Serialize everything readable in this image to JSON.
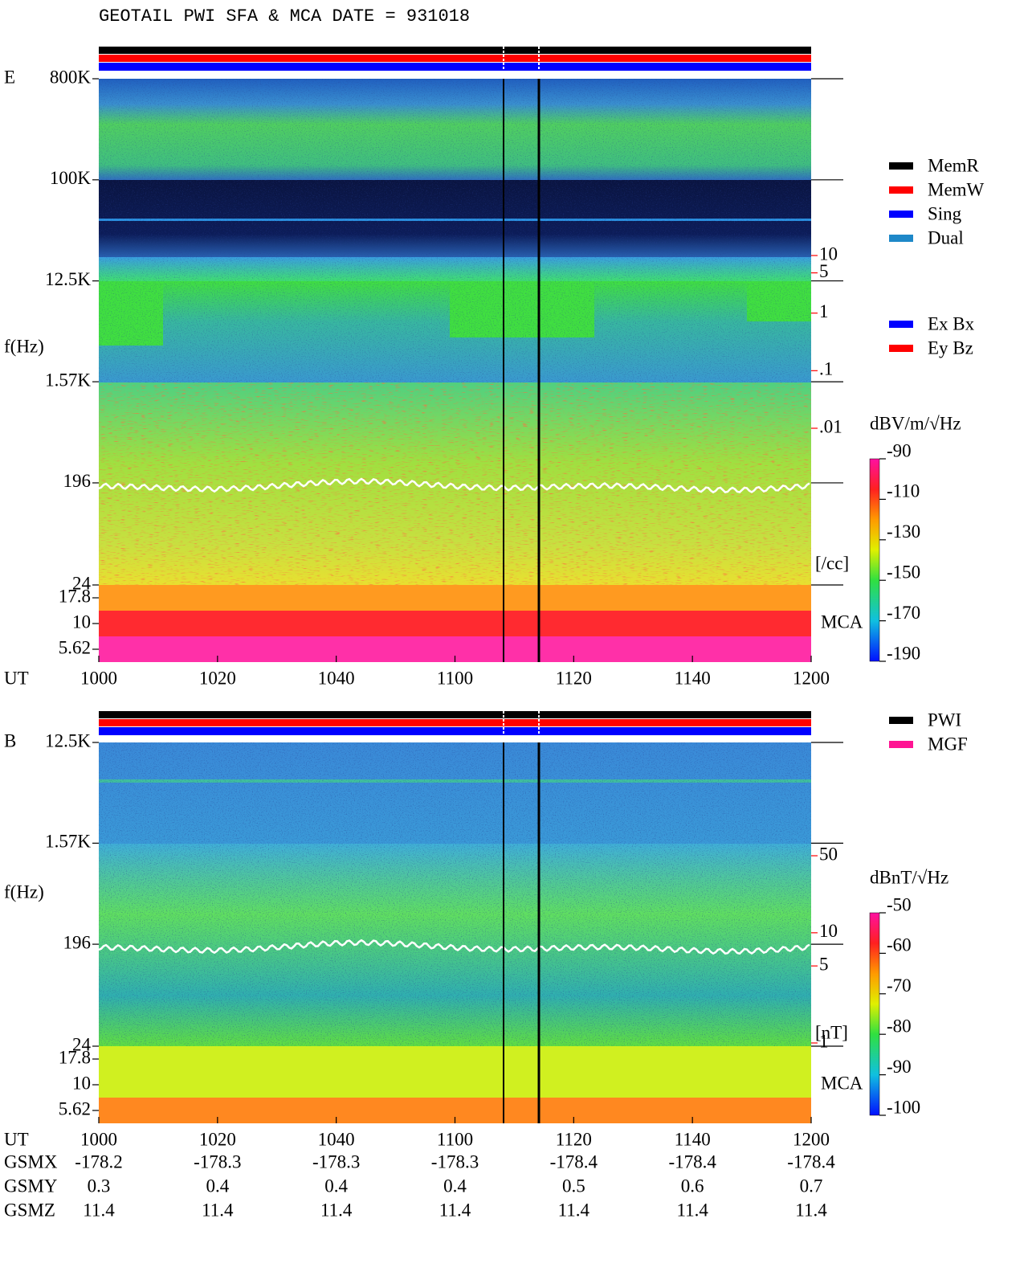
{
  "title": "GEOTAIL  PWI SFA & MCA   DATE = 931018",
  "chart_data": [
    {
      "type": "spectrogram",
      "panel_label": "E",
      "ylabel": "f(Hz)",
      "xlabel": "UT",
      "categories": [
        "1000",
        "1020",
        "1040",
        "1100",
        "1120",
        "1140",
        "1200"
      ],
      "log_y": true,
      "ylim": [
        24,
        800000
      ],
      "yticks": [
        {
          "value": 800000,
          "label": "800K"
        },
        {
          "value": 100000,
          "label": "100K"
        },
        {
          "value": 12500,
          "label": "12.5K"
        },
        {
          "value": 1570,
          "label": "1.57K"
        },
        196,
        24
      ],
      "mca_ticks": [
        17.8,
        10,
        5.62
      ],
      "mca_label": "MCA",
      "y2lim": [
        0.01,
        10
      ],
      "y2ticks": [
        10,
        5,
        1,
        {
          "value": 0.1,
          "label": ".1"
        },
        {
          "value": 0.01,
          "label": ".01"
        }
      ],
      "y2label": "[/cc]",
      "y2color": "#ff0000",
      "colorbar": {
        "label": "dBV/m/√Hz",
        "lim": [
          -190,
          -90
        ],
        "ticks": [
          -90,
          -110,
          -130,
          -150,
          -170,
          -190
        ]
      },
      "legend": [
        {
          "name": "MemR",
          "color": "#000000"
        },
        {
          "name": "MemW",
          "color": "#ff0000"
        },
        {
          "name": "Sing",
          "color": "#0000ff"
        },
        {
          "name": "Dual",
          "color": "#1e88c8"
        }
      ],
      "legend2": [
        {
          "name": "Ex Bx",
          "color": "#0000ff"
        },
        {
          "name": "Ey Bz",
          "color": "#ff0000"
        }
      ]
    },
    {
      "type": "spectrogram",
      "panel_label": "B",
      "ylabel": "f(Hz)",
      "xlabel": "UT",
      "categories": [
        "1000",
        "1020",
        "1040",
        "1100",
        "1120",
        "1140",
        "1200"
      ],
      "log_y": true,
      "ylim": [
        24,
        12500
      ],
      "yticks": [
        {
          "value": 12500,
          "label": "12.5K"
        },
        {
          "value": 1570,
          "label": "1.57K"
        },
        196,
        24
      ],
      "mca_ticks": [
        17.8,
        10,
        5.62
      ],
      "mca_label": "MCA",
      "y2lim": [
        1,
        50
      ],
      "y2ticks": [
        50,
        10,
        5,
        1
      ],
      "y2label": "[nT]",
      "y2color": "#ff0000",
      "colorbar": {
        "label": "dBnT/√Hz",
        "lim": [
          -100,
          -50
        ],
        "ticks": [
          -50,
          -60,
          -70,
          -80,
          -90,
          -100
        ]
      },
      "legend": [
        {
          "name": "PWI",
          "color": "#000000"
        },
        {
          "name": "MGF",
          "color": "#ff1493"
        }
      ]
    }
  ],
  "orbit": {
    "rows": [
      {
        "name": "GSMX",
        "values": [
          -178.2,
          -178.3,
          -178.3,
          -178.3,
          -178.4,
          -178.4,
          -178.4
        ]
      },
      {
        "name": "GSMY",
        "values": [
          0.3,
          0.4,
          0.4,
          0.4,
          0.5,
          0.6,
          0.7
        ]
      },
      {
        "name": "GSMZ",
        "values": [
          11.4,
          11.4,
          11.4,
          11.4,
          11.4,
          11.4,
          11.4
        ]
      }
    ]
  }
}
